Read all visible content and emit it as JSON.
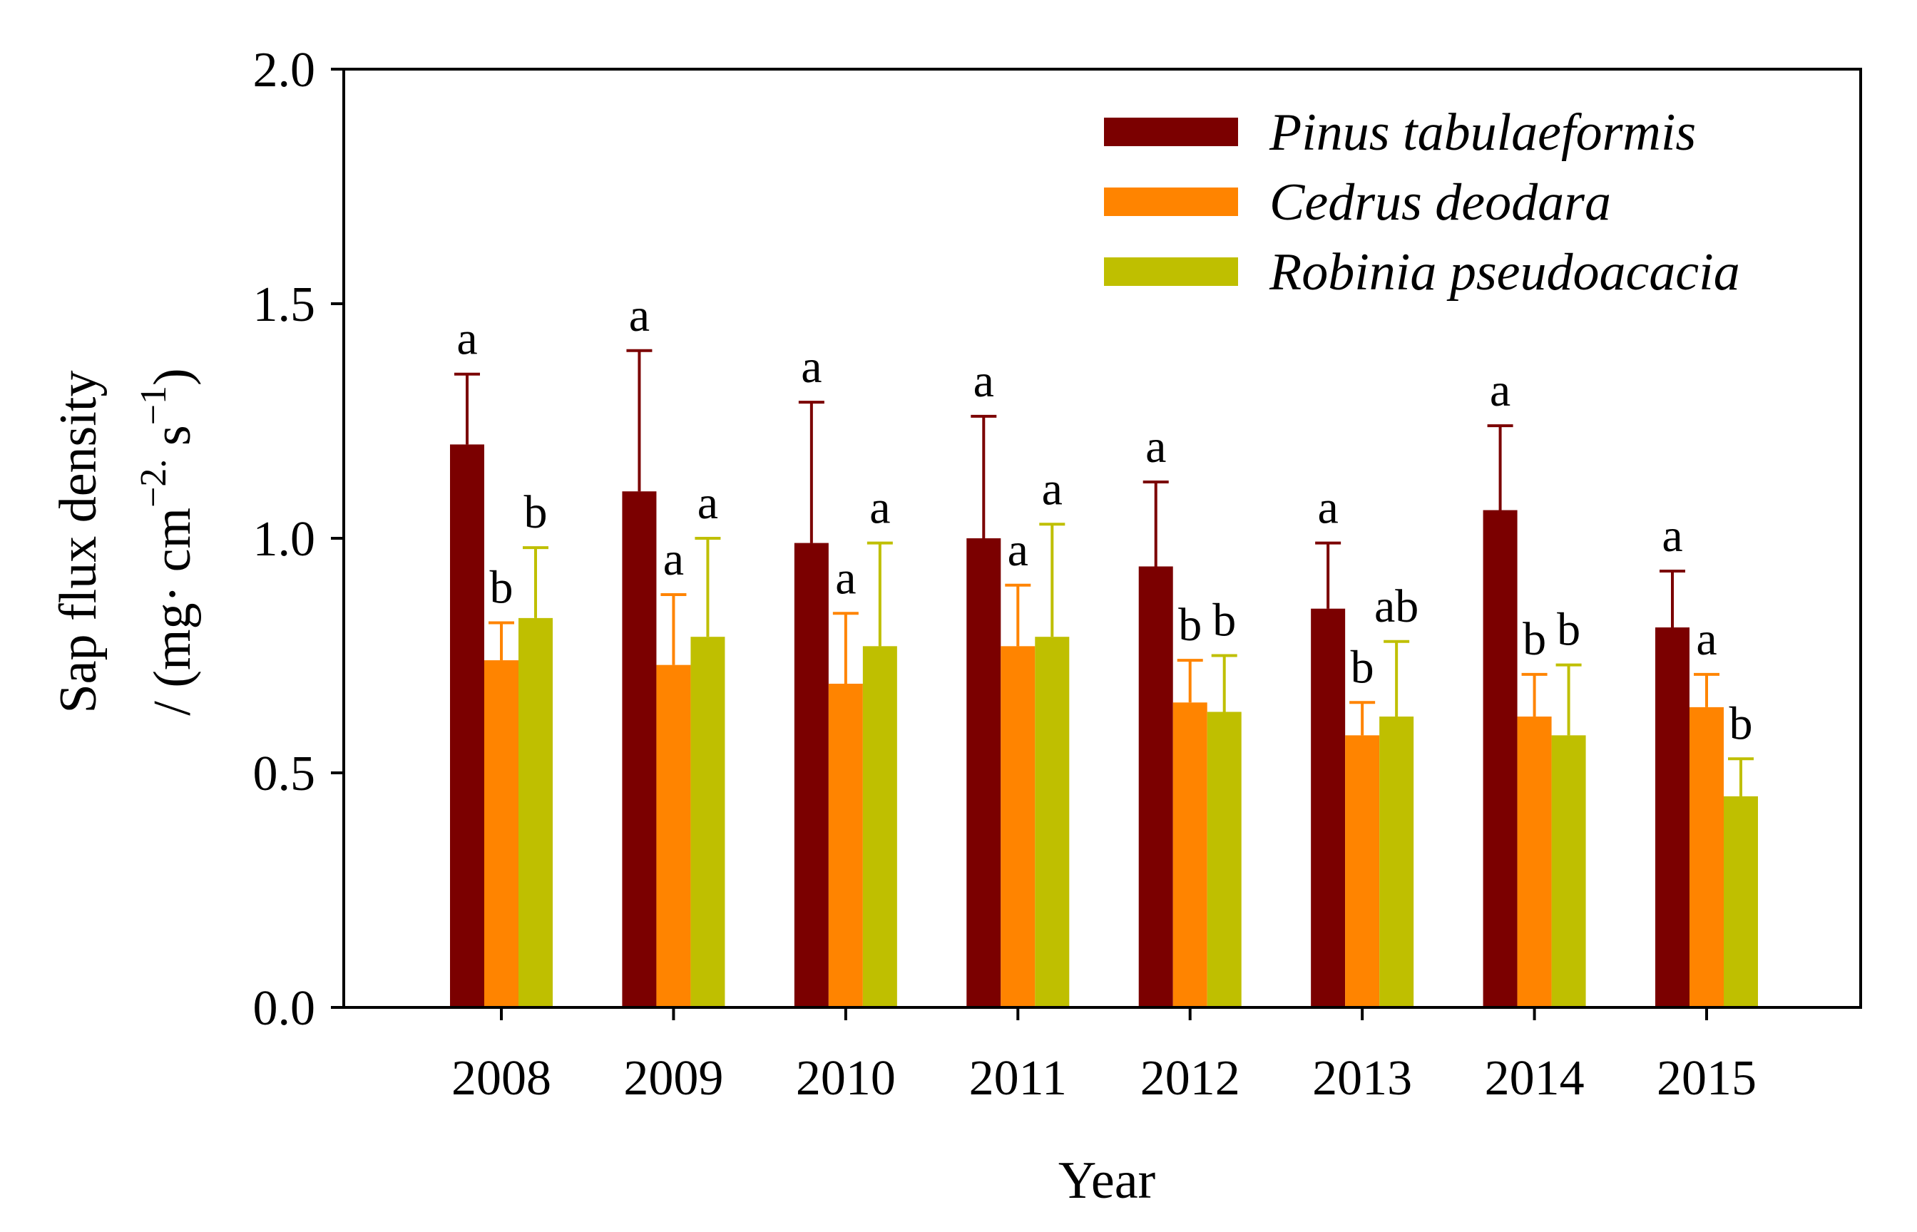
{
  "chart_data": {
    "type": "bar",
    "title": "",
    "xlabel": "Year",
    "ylabel_line1": "Sap flux density",
    "ylabel_line2_parts": [
      "/ (mg· cm",
      "−2.",
      " s",
      "−1",
      ")"
    ],
    "ylim": [
      0,
      2.0
    ],
    "yticks": [
      0.0,
      0.5,
      1.0,
      1.5,
      2.0
    ],
    "ytick_labels": [
      "0.0",
      "0.5",
      "1.0",
      "1.5",
      "2.0"
    ],
    "legend_position": "top-right",
    "categories": [
      "2008",
      "2009",
      "2010",
      "2011",
      "2012",
      "2013",
      "2014",
      "2015"
    ],
    "series": [
      {
        "name": "Pinus tabulaeformis",
        "color": "#7b0000",
        "values": [
          1.2,
          1.1,
          0.99,
          1.0,
          0.94,
          0.85,
          1.06,
          0.81
        ],
        "errors": [
          0.15,
          0.3,
          0.3,
          0.26,
          0.18,
          0.14,
          0.18,
          0.12
        ],
        "letters": [
          "a",
          "a",
          "a",
          "a",
          "a",
          "a",
          "a",
          "a"
        ]
      },
      {
        "name": "Cedrus deodara",
        "color": "#ff8400",
        "values": [
          0.74,
          0.73,
          0.69,
          0.77,
          0.65,
          0.58,
          0.62,
          0.64
        ],
        "errors": [
          0.08,
          0.15,
          0.15,
          0.13,
          0.09,
          0.07,
          0.09,
          0.07
        ],
        "letters": [
          "b",
          "a",
          "a",
          "a",
          "b",
          "b",
          "b",
          "a"
        ]
      },
      {
        "name": "Robinia pseudoacacia",
        "color": "#bfbf00",
        "values": [
          0.83,
          0.79,
          0.77,
          0.79,
          0.63,
          0.62,
          0.58,
          0.45
        ],
        "errors": [
          0.15,
          0.21,
          0.22,
          0.24,
          0.12,
          0.16,
          0.15,
          0.08
        ],
        "letters": [
          "b",
          "a",
          "a",
          "a",
          "b",
          "ab",
          "b",
          "b"
        ]
      }
    ]
  }
}
